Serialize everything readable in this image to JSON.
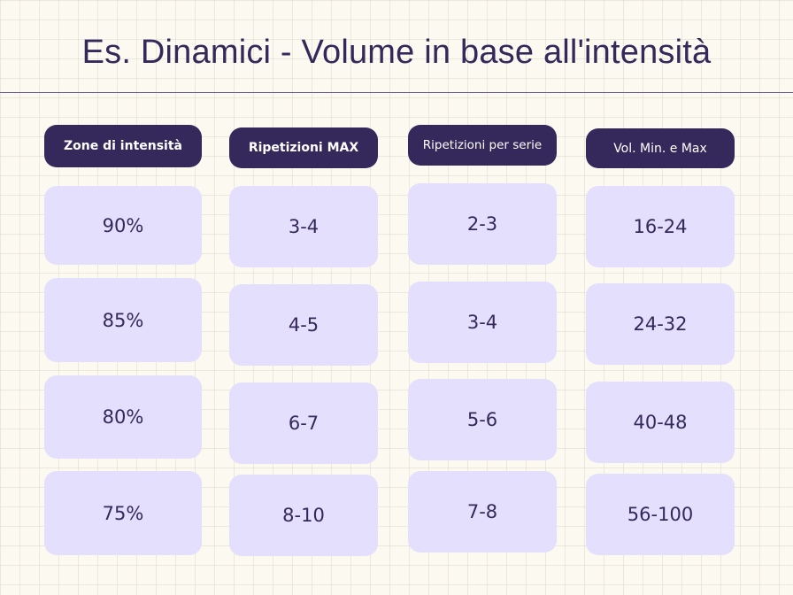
{
  "title": "Es. Dinamici - Volume in base all'intensità",
  "columns": [
    {
      "header": "Zone di intensità",
      "cells": [
        "90%",
        "85%",
        "80%",
        "75%"
      ]
    },
    {
      "header": "Ripetizioni MAX",
      "cells": [
        "3-4",
        "4-5",
        "6-7",
        "8-10"
      ]
    },
    {
      "header": "Ripetizioni per serie",
      "cells": [
        "2-3",
        "3-4",
        "5-6",
        "7-8"
      ]
    },
    {
      "header": "Vol. Min. e Max",
      "cells": [
        "16-24",
        "24-32",
        "40-48",
        "56-100"
      ]
    }
  ],
  "colors": {
    "background": "#fbf9f0",
    "header": "#35285a",
    "cell": "#e3dffc",
    "text": "#35285a"
  }
}
